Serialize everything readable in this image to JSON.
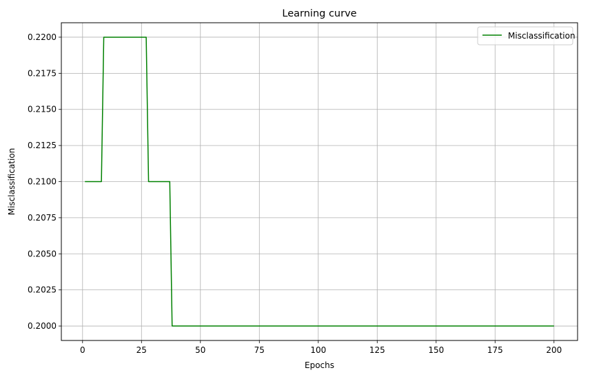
{
  "chart_data": {
    "type": "line",
    "title": "Learning curve",
    "xlabel": "Epochs",
    "ylabel": "Misclassification",
    "xlim": [
      -9,
      210
    ],
    "ylim": [
      0.199,
      0.221
    ],
    "xticks": [
      0,
      25,
      50,
      75,
      100,
      125,
      150,
      175,
      200
    ],
    "yticks": [
      0.2,
      0.2025,
      0.205,
      0.2075,
      0.21,
      0.2125,
      0.215,
      0.2175,
      0.22
    ],
    "ytick_labels": [
      "0.2000",
      "0.2025",
      "0.2050",
      "0.2075",
      "0.2100",
      "0.2125",
      "0.2150",
      "0.2175",
      "0.2200"
    ],
    "grid": true,
    "legend_position": "top-right",
    "series": [
      {
        "name": "Misclassification",
        "color": "#008000",
        "x": [
          1,
          8,
          9,
          27,
          28,
          37,
          38,
          200
        ],
        "y": [
          0.21,
          0.21,
          0.22,
          0.22,
          0.21,
          0.21,
          0.2,
          0.2
        ]
      }
    ]
  }
}
